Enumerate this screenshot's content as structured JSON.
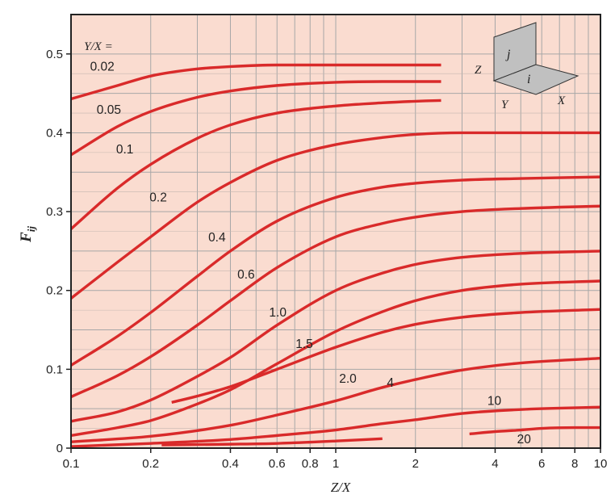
{
  "chart_data": {
    "type": "line",
    "x_scale": "log",
    "xlim": [
      0.1,
      10
    ],
    "ylim": [
      0,
      0.55
    ],
    "grid": true,
    "background_color": "#fadcd0",
    "line_color": "#d92a2a",
    "xlabel": "Z/X",
    "ylabel_main": "F",
    "ylabel_sub": "ij",
    "x_ticks": [
      {
        "value": 0.1,
        "label": "0.1"
      },
      {
        "value": 0.2,
        "label": "0.2"
      },
      {
        "value": 0.4,
        "label": "0.4"
      },
      {
        "value": 0.6,
        "label": "0.6"
      },
      {
        "value": 0.8,
        "label": "0.8"
      },
      {
        "value": 1,
        "label": "1"
      },
      {
        "value": 2,
        "label": "2"
      },
      {
        "value": 4,
        "label": "4"
      },
      {
        "value": 6,
        "label": "6"
      },
      {
        "value": 8,
        "label": "8"
      },
      {
        "value": 10,
        "label": "10"
      }
    ],
    "y_ticks": [
      {
        "value": 0,
        "label": "0"
      },
      {
        "value": 0.1,
        "label": "0.1"
      },
      {
        "value": 0.2,
        "label": "0.2"
      },
      {
        "value": 0.3,
        "label": "0.3"
      },
      {
        "value": 0.4,
        "label": "0.4"
      },
      {
        "value": 0.5,
        "label": "0.5"
      }
    ],
    "legend_title": "Y/X =",
    "series": [
      {
        "name": "0.02",
        "x": [
          0.1,
          0.15,
          0.2,
          0.3,
          0.4,
          0.6,
          1,
          1.5,
          2,
          2.5
        ],
        "y": [
          0.443,
          0.46,
          0.472,
          0.481,
          0.484,
          0.486,
          0.486,
          0.486,
          0.486,
          0.486
        ]
      },
      {
        "name": "0.05",
        "x": [
          0.1,
          0.15,
          0.2,
          0.3,
          0.4,
          0.6,
          1,
          1.5,
          2,
          2.5
        ],
        "y": [
          0.372,
          0.408,
          0.427,
          0.445,
          0.453,
          0.46,
          0.464,
          0.465,
          0.465,
          0.465
        ]
      },
      {
        "name": "0.1",
        "x": [
          0.1,
          0.15,
          0.2,
          0.3,
          0.4,
          0.6,
          1,
          1.5,
          2,
          2.5
        ],
        "y": [
          0.278,
          0.33,
          0.36,
          0.393,
          0.41,
          0.425,
          0.434,
          0.438,
          0.44,
          0.441
        ]
      },
      {
        "name": "0.2",
        "x": [
          0.1,
          0.15,
          0.2,
          0.3,
          0.4,
          0.6,
          1,
          1.5,
          2,
          3,
          5,
          10
        ],
        "y": [
          0.19,
          0.236,
          0.268,
          0.312,
          0.337,
          0.365,
          0.385,
          0.394,
          0.398,
          0.4,
          0.4,
          0.4
        ]
      },
      {
        "name": "0.4",
        "x": [
          0.1,
          0.15,
          0.2,
          0.3,
          0.4,
          0.6,
          1,
          1.5,
          2,
          3,
          5,
          10
        ],
        "y": [
          0.105,
          0.142,
          0.172,
          0.218,
          0.25,
          0.288,
          0.318,
          0.331,
          0.336,
          0.34,
          0.342,
          0.344
        ]
      },
      {
        "name": "0.6",
        "x": [
          0.1,
          0.15,
          0.2,
          0.3,
          0.4,
          0.6,
          1,
          1.5,
          2,
          3,
          5,
          10
        ],
        "y": [
          0.065,
          0.092,
          0.116,
          0.156,
          0.187,
          0.229,
          0.268,
          0.285,
          0.293,
          0.3,
          0.304,
          0.307
        ]
      },
      {
        "name": "1.0",
        "x": [
          0.1,
          0.15,
          0.2,
          0.3,
          0.4,
          0.6,
          1,
          1.5,
          2,
          3,
          5,
          10
        ],
        "y": [
          0.034,
          0.046,
          0.061,
          0.091,
          0.115,
          0.156,
          0.2,
          0.222,
          0.233,
          0.242,
          0.247,
          0.25
        ]
      },
      {
        "name": "1.5",
        "x": [
          0.1,
          0.15,
          0.2,
          0.3,
          0.4,
          0.6,
          1,
          1.5,
          2,
          3,
          5,
          10
        ],
        "y": [
          0.016,
          0.026,
          0.035,
          0.056,
          0.074,
          0.107,
          0.148,
          0.173,
          0.187,
          0.2,
          0.208,
          0.212
        ]
      },
      {
        "name": "2.0",
        "x": [
          0.24,
          0.3,
          0.4,
          0.6,
          1,
          1.5,
          2,
          3,
          5,
          10
        ],
        "y": [
          0.058,
          0.066,
          0.078,
          0.1,
          0.128,
          0.147,
          0.157,
          0.166,
          0.172,
          0.176
        ]
      },
      {
        "name": "4",
        "x": [
          0.1,
          0.2,
          0.4,
          0.6,
          1,
          1.5,
          2,
          3,
          5,
          10
        ],
        "y": [
          0.008,
          0.015,
          0.029,
          0.042,
          0.06,
          0.077,
          0.087,
          0.099,
          0.108,
          0.114
        ]
      },
      {
        "name": "10",
        "x": [
          0.1,
          0.2,
          0.4,
          0.6,
          1,
          1.5,
          2,
          3,
          5,
          10
        ],
        "y": [
          0.002,
          0.006,
          0.011,
          0.016,
          0.023,
          0.031,
          0.036,
          0.044,
          0.049,
          0.052
        ]
      },
      {
        "name": "20",
        "x": [
          0.22,
          0.4,
          0.6,
          1,
          1.5
        ],
        "y": [
          0.004,
          0.005,
          0.006,
          0.009,
          0.012
        ]
      },
      {
        "name": "20",
        "x": [
          3.2,
          4,
          5,
          6,
          8,
          10
        ],
        "y": [
          0.018,
          0.021,
          0.023,
          0.025,
          0.026,
          0.026
        ]
      }
    ],
    "labels": [
      {
        "text": "Y/X =",
        "x": 0.112,
        "y": 0.505
      },
      {
        "text": "0.02",
        "x": 0.118,
        "y": 0.479
      },
      {
        "text": "0.05",
        "x": 0.125,
        "y": 0.424
      },
      {
        "text": "0.1",
        "x": 0.148,
        "y": 0.374
      },
      {
        "text": "0.2",
        "x": 0.198,
        "y": 0.313
      },
      {
        "text": "0.4",
        "x": 0.33,
        "y": 0.262
      },
      {
        "text": "0.6",
        "x": 0.425,
        "y": 0.215
      },
      {
        "text": "1.0",
        "x": 0.56,
        "y": 0.167
      },
      {
        "text": "1.5",
        "x": 0.705,
        "y": 0.127
      },
      {
        "text": "2.0",
        "x": 1.03,
        "y": 0.083
      },
      {
        "text": "4",
        "x": 1.56,
        "y": 0.078
      },
      {
        "text": "10",
        "x": 3.74,
        "y": 0.055
      },
      {
        "text": "20",
        "x": 4.84,
        "y": 0.006
      }
    ],
    "inset": {
      "labels": {
        "z": "Z",
        "j": "j",
        "i": "i",
        "y": "Y",
        "x": "X"
      },
      "fill": "#c0c0c0"
    }
  }
}
